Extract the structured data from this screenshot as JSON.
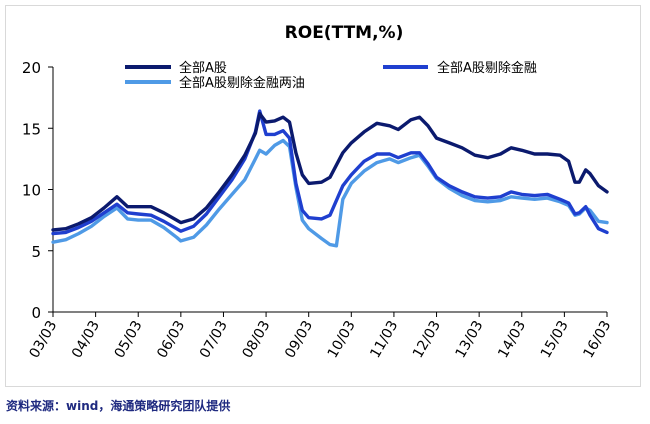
{
  "chart_data": {
    "type": "line",
    "title": "ROE(TTM,%)",
    "xlabel": "",
    "ylabel": "",
    "ylim": [
      0,
      20
    ],
    "yticks": [
      0,
      5,
      10,
      15,
      20
    ],
    "grid": false,
    "legend_position": "top",
    "x_ticks": [
      "03/03",
      "04/03",
      "05/03",
      "06/03",
      "07/03",
      "08/03",
      "09/03",
      "10/03",
      "11/03",
      "12/03",
      "13/03",
      "14/03",
      "15/03",
      "16/03"
    ],
    "x_range": [
      2003.0,
      2016.0
    ],
    "series": [
      {
        "name": "全部A股",
        "color": "#0b1a6e",
        "points": [
          [
            2003.0,
            6.7
          ],
          [
            2003.3,
            6.8
          ],
          [
            2003.6,
            7.2
          ],
          [
            2003.9,
            7.7
          ],
          [
            2004.2,
            8.5
          ],
          [
            2004.5,
            9.4
          ],
          [
            2004.75,
            8.6
          ],
          [
            2005.0,
            8.6
          ],
          [
            2005.3,
            8.6
          ],
          [
            2005.6,
            8.1
          ],
          [
            2005.9,
            7.5
          ],
          [
            2006.0,
            7.3
          ],
          [
            2006.3,
            7.6
          ],
          [
            2006.6,
            8.5
          ],
          [
            2006.9,
            9.8
          ],
          [
            2007.2,
            11.2
          ],
          [
            2007.5,
            12.8
          ],
          [
            2007.75,
            14.6
          ],
          [
            2007.85,
            16.2
          ],
          [
            2008.0,
            15.5
          ],
          [
            2008.2,
            15.6
          ],
          [
            2008.4,
            15.9
          ],
          [
            2008.55,
            15.5
          ],
          [
            2008.7,
            13.0
          ],
          [
            2008.85,
            11.2
          ],
          [
            2009.0,
            10.5
          ],
          [
            2009.3,
            10.6
          ],
          [
            2009.5,
            11.0
          ],
          [
            2009.8,
            13.0
          ],
          [
            2010.0,
            13.8
          ],
          [
            2010.3,
            14.7
          ],
          [
            2010.6,
            15.4
          ],
          [
            2010.9,
            15.2
          ],
          [
            2011.1,
            14.9
          ],
          [
            2011.4,
            15.7
          ],
          [
            2011.6,
            15.9
          ],
          [
            2011.8,
            15.2
          ],
          [
            2012.0,
            14.2
          ],
          [
            2012.3,
            13.8
          ],
          [
            2012.6,
            13.4
          ],
          [
            2012.9,
            12.8
          ],
          [
            2013.2,
            12.6
          ],
          [
            2013.5,
            12.9
          ],
          [
            2013.75,
            13.4
          ],
          [
            2014.0,
            13.2
          ],
          [
            2014.3,
            12.9
          ],
          [
            2014.6,
            12.9
          ],
          [
            2014.9,
            12.8
          ],
          [
            2015.1,
            12.3
          ],
          [
            2015.25,
            10.6
          ],
          [
            2015.35,
            10.6
          ],
          [
            2015.5,
            11.6
          ],
          [
            2015.6,
            11.3
          ],
          [
            2015.8,
            10.3
          ],
          [
            2016.0,
            9.8
          ]
        ]
      },
      {
        "name": "全部A股剔除金融",
        "color": "#1f3fcf",
        "points": [
          [
            2003.0,
            6.4
          ],
          [
            2003.3,
            6.5
          ],
          [
            2003.6,
            6.9
          ],
          [
            2003.9,
            7.4
          ],
          [
            2004.2,
            8.1
          ],
          [
            2004.5,
            8.8
          ],
          [
            2004.75,
            8.1
          ],
          [
            2005.0,
            8.0
          ],
          [
            2005.3,
            7.9
          ],
          [
            2005.6,
            7.4
          ],
          [
            2005.9,
            6.8
          ],
          [
            2006.0,
            6.6
          ],
          [
            2006.3,
            7.0
          ],
          [
            2006.6,
            8.0
          ],
          [
            2006.9,
            9.4
          ],
          [
            2007.2,
            10.8
          ],
          [
            2007.5,
            12.5
          ],
          [
            2007.75,
            14.7
          ],
          [
            2007.85,
            16.4
          ],
          [
            2008.0,
            14.5
          ],
          [
            2008.2,
            14.5
          ],
          [
            2008.4,
            14.8
          ],
          [
            2008.55,
            14.2
          ],
          [
            2008.7,
            10.5
          ],
          [
            2008.85,
            8.3
          ],
          [
            2009.0,
            7.7
          ],
          [
            2009.3,
            7.6
          ],
          [
            2009.5,
            7.9
          ],
          [
            2009.8,
            10.3
          ],
          [
            2010.0,
            11.2
          ],
          [
            2010.3,
            12.3
          ],
          [
            2010.6,
            12.9
          ],
          [
            2010.9,
            12.9
          ],
          [
            2011.1,
            12.6
          ],
          [
            2011.4,
            13.0
          ],
          [
            2011.6,
            13.0
          ],
          [
            2011.8,
            12.1
          ],
          [
            2012.0,
            11.0
          ],
          [
            2012.3,
            10.3
          ],
          [
            2012.6,
            9.8
          ],
          [
            2012.9,
            9.4
          ],
          [
            2013.2,
            9.3
          ],
          [
            2013.5,
            9.4
          ],
          [
            2013.75,
            9.8
          ],
          [
            2014.0,
            9.6
          ],
          [
            2014.3,
            9.5
          ],
          [
            2014.6,
            9.6
          ],
          [
            2014.9,
            9.2
          ],
          [
            2015.1,
            8.9
          ],
          [
            2015.25,
            8.0
          ],
          [
            2015.35,
            8.1
          ],
          [
            2015.5,
            8.6
          ],
          [
            2015.6,
            7.9
          ],
          [
            2015.8,
            6.8
          ],
          [
            2016.0,
            6.5
          ]
        ]
      },
      {
        "name": "全部A股剔除金融两油",
        "color": "#4f9ae6",
        "points": [
          [
            2003.0,
            5.7
          ],
          [
            2003.3,
            5.9
          ],
          [
            2003.6,
            6.4
          ],
          [
            2003.9,
            7.0
          ],
          [
            2004.2,
            7.8
          ],
          [
            2004.5,
            8.5
          ],
          [
            2004.75,
            7.6
          ],
          [
            2005.0,
            7.5
          ],
          [
            2005.3,
            7.5
          ],
          [
            2005.6,
            6.9
          ],
          [
            2005.9,
            6.1
          ],
          [
            2006.0,
            5.8
          ],
          [
            2006.3,
            6.1
          ],
          [
            2006.6,
            7.1
          ],
          [
            2006.9,
            8.4
          ],
          [
            2007.2,
            9.6
          ],
          [
            2007.5,
            10.8
          ],
          [
            2007.75,
            12.5
          ],
          [
            2007.85,
            13.2
          ],
          [
            2008.0,
            12.9
          ],
          [
            2008.2,
            13.6
          ],
          [
            2008.4,
            14.0
          ],
          [
            2008.55,
            13.5
          ],
          [
            2008.7,
            10.2
          ],
          [
            2008.85,
            7.5
          ],
          [
            2009.0,
            6.8
          ],
          [
            2009.3,
            6.0
          ],
          [
            2009.5,
            5.5
          ],
          [
            2009.65,
            5.4
          ],
          [
            2009.8,
            9.2
          ],
          [
            2010.0,
            10.5
          ],
          [
            2010.3,
            11.5
          ],
          [
            2010.6,
            12.2
          ],
          [
            2010.9,
            12.5
          ],
          [
            2011.1,
            12.2
          ],
          [
            2011.4,
            12.6
          ],
          [
            2011.6,
            12.8
          ],
          [
            2011.8,
            11.9
          ],
          [
            2012.0,
            10.9
          ],
          [
            2012.3,
            10.1
          ],
          [
            2012.6,
            9.5
          ],
          [
            2012.9,
            9.1
          ],
          [
            2013.2,
            9.0
          ],
          [
            2013.5,
            9.1
          ],
          [
            2013.75,
            9.4
          ],
          [
            2014.0,
            9.3
          ],
          [
            2014.3,
            9.2
          ],
          [
            2014.6,
            9.3
          ],
          [
            2014.9,
            9.0
          ],
          [
            2015.1,
            8.7
          ],
          [
            2015.25,
            7.9
          ],
          [
            2015.35,
            8.0
          ],
          [
            2015.5,
            8.5
          ],
          [
            2015.6,
            8.3
          ],
          [
            2015.8,
            7.4
          ],
          [
            2016.0,
            7.3
          ]
        ]
      }
    ]
  },
  "source_text": "资料来源：wind，海通策略研究团队提供"
}
